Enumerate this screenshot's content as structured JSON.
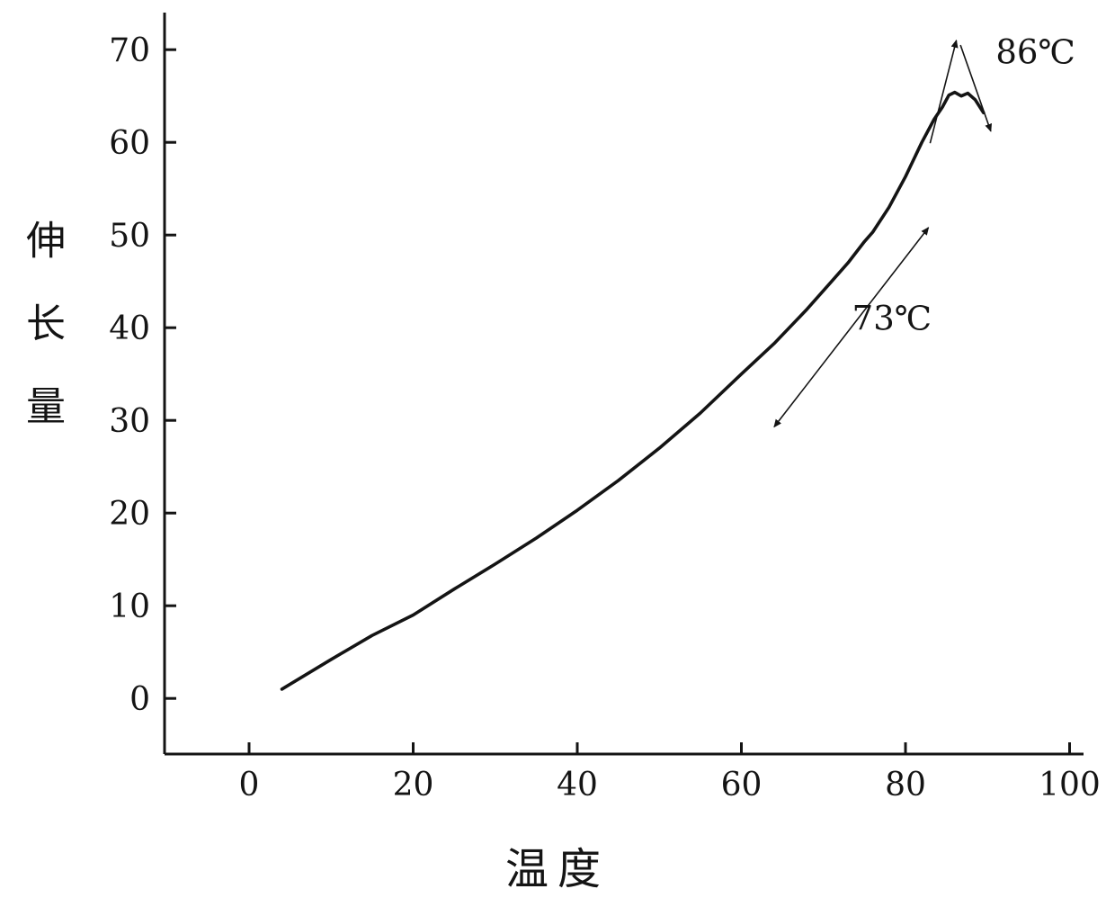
{
  "figure": {
    "background": "#ffffff"
  },
  "chart_data": {
    "type": "line",
    "title": "",
    "xlabel": "温度",
    "ylabel": "伸长量",
    "xlim": [
      -10.3,
      101.7
    ],
    "ylim": [
      -6,
      74
    ],
    "xticks": [
      0,
      20,
      40,
      60,
      80,
      100
    ],
    "yticks": [
      0,
      10,
      20,
      30,
      40,
      50,
      60,
      70
    ],
    "grid": false,
    "legend": "none",
    "color": "#141414",
    "series": [
      {
        "name": "elongation-vs-temperature",
        "points": [
          [
            4,
            1
          ],
          [
            10,
            4.2
          ],
          [
            15,
            6.8
          ],
          [
            20,
            9
          ],
          [
            25,
            11.8
          ],
          [
            30,
            14.5
          ],
          [
            35,
            17.3
          ],
          [
            40,
            20.3
          ],
          [
            45,
            23.5
          ],
          [
            50,
            27
          ],
          [
            55,
            30.8
          ],
          [
            60,
            35
          ],
          [
            64,
            38.3
          ],
          [
            68,
            42
          ],
          [
            71,
            45
          ],
          [
            73,
            47
          ],
          [
            75,
            49.3
          ],
          [
            76,
            50.3
          ],
          [
            78,
            53
          ],
          [
            80,
            56.3
          ],
          [
            82,
            60
          ],
          [
            83.5,
            62.5
          ],
          [
            84.5,
            63.8
          ],
          [
            85.3,
            65.1
          ],
          [
            86,
            65.4
          ],
          [
            86.8,
            65.0
          ],
          [
            87.6,
            65.3
          ],
          [
            88.5,
            64.6
          ],
          [
            89.5,
            63.2
          ]
        ]
      }
    ],
    "annotations": [
      {
        "name": "peak-temperature-label",
        "label": "86℃",
        "x": 91,
        "y": 68.5
      },
      {
        "name": "tangent-temperature-label",
        "label": "73℃",
        "x": 73.5,
        "y": 39.8
      }
    ],
    "arrows": [
      {
        "name": "peak-tangent-left",
        "x1": 83,
        "y1": 59.9,
        "x2": 86.2,
        "y2": 71,
        "head": "end"
      },
      {
        "name": "peak-tangent-right",
        "x1": 86.7,
        "y1": 70.5,
        "x2": 90.4,
        "y2": 61.2,
        "head": "end"
      },
      {
        "name": "tangent-73",
        "x1": 64,
        "y1": 29.3,
        "x2": 82.8,
        "y2": 50.8,
        "head": "both"
      }
    ]
  }
}
